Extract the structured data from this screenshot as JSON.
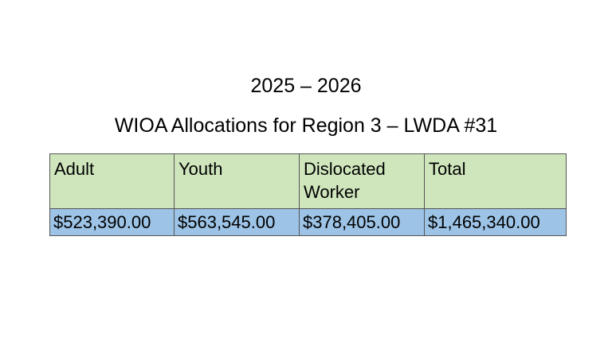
{
  "header": {
    "years": "2025 – 2026",
    "title": "WIOA Allocations for Region 3 – LWDA #31"
  },
  "table": {
    "columns": [
      "Adult",
      "Youth",
      "Dislocated Worker",
      "Total"
    ],
    "rows": [
      [
        "$523,390.00",
        "$563,545.00",
        "$378,405.00",
        "$1,465,340.00"
      ]
    ]
  }
}
